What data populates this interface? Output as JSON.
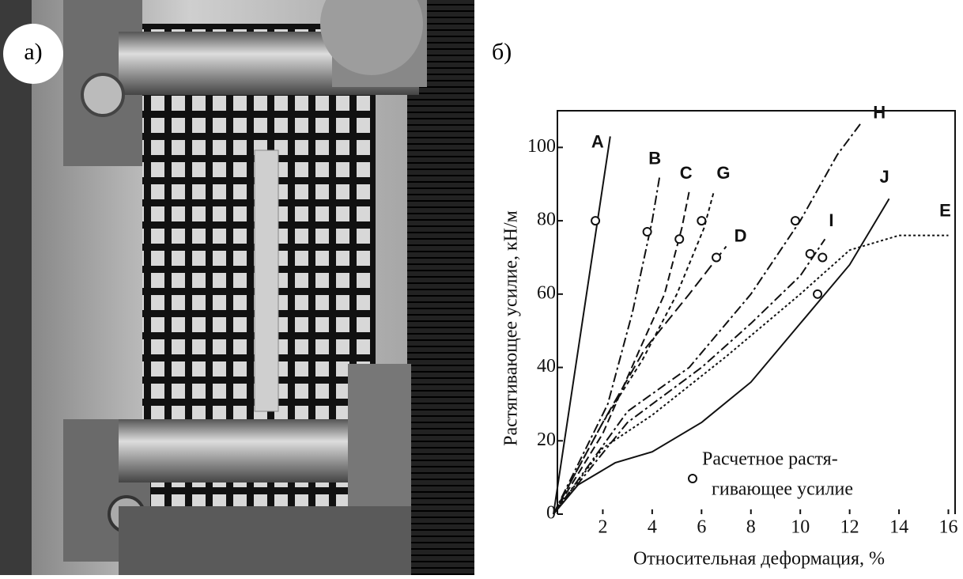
{
  "panels": {
    "photo_label": "а)",
    "chart_label": "б)"
  },
  "chart_data": {
    "type": "line",
    "x_label": "Относительная деформация, %",
    "y_label": "Растягивающее усилие, кН/м",
    "legend_lines": [
      "Расчетное растя-",
      "гивающее усилие"
    ],
    "xlim": [
      0,
      16.4
    ],
    "ylim": [
      0,
      110
    ],
    "xticks": [
      2,
      4,
      6,
      8,
      10,
      12,
      14,
      16
    ],
    "yticks": [
      0,
      20,
      40,
      60,
      80,
      100
    ],
    "color": "#111111",
    "series": [
      {
        "name": "A",
        "dash": "solid",
        "x": [
          0,
          2.3
        ],
        "values": [
          0,
          103
        ],
        "point": [
          1.7,
          80
        ]
      },
      {
        "name": "B",
        "dash": "dashdot",
        "x": [
          0,
          2.2,
          3.2,
          4,
          4.3
        ],
        "values": [
          0,
          30,
          55,
          80,
          92
        ],
        "point": [
          3.8,
          77
        ]
      },
      {
        "name": "C",
        "dash": "dash",
        "x": [
          0,
          2,
          3.5,
          4.5,
          5.2,
          5.5
        ],
        "values": [
          0,
          22,
          45,
          60,
          78,
          88
        ],
        "point": [
          5.1,
          75
        ]
      },
      {
        "name": "G",
        "dash": "short",
        "x": [
          0,
          2,
          3.6,
          5,
          6.1,
          6.5
        ],
        "values": [
          0,
          25,
          42,
          60,
          78,
          88
        ],
        "point": [
          6,
          80
        ]
      },
      {
        "name": "D",
        "dash": "long",
        "x": [
          0,
          2,
          3.7,
          5.5,
          7
        ],
        "values": [
          0,
          25,
          45,
          60,
          73
        ],
        "point": [
          6.6,
          70
        ]
      },
      {
        "name": "H",
        "dash": "dashdot",
        "x": [
          0,
          3,
          5.5,
          8,
          10,
          11.5,
          12.5
        ],
        "values": [
          0,
          28,
          40,
          60,
          80,
          98,
          107
        ],
        "point": [
          9.8,
          80
        ]
      },
      {
        "name": "I",
        "dash": "dashdot",
        "x": [
          0,
          3,
          6,
          8,
          10,
          11
        ],
        "values": [
          0,
          25,
          40,
          52,
          65,
          75
        ],
        "point": [
          10.4,
          71
        ]
      },
      {
        "name": "E",
        "dash": "dot",
        "x": [
          0,
          2,
          4,
          7,
          10,
          12,
          14,
          16
        ],
        "values": [
          0,
          18,
          27,
          43,
          60,
          72,
          76,
          76
        ],
        "point": [
          10.9,
          70
        ]
      },
      {
        "name": "J",
        "dash": "solid",
        "x": [
          0,
          1,
          2.5,
          4,
          6,
          8,
          10,
          12,
          13.6
        ],
        "values": [
          0,
          8,
          14,
          17,
          25,
          36,
          52,
          68,
          86
        ],
        "point": [
          10.7,
          60
        ]
      }
    ]
  }
}
